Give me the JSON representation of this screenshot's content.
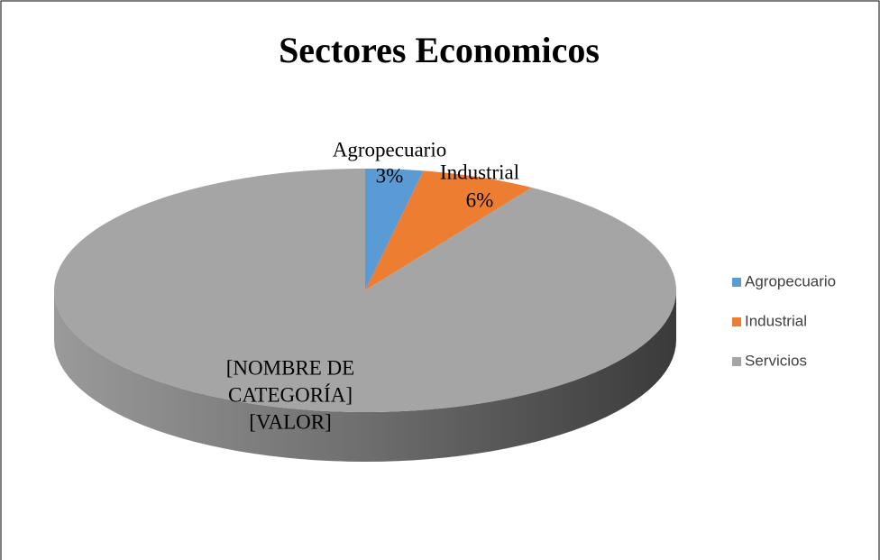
{
  "chart_data": {
    "type": "pie",
    "title": "Sectores Economicos",
    "categories": [
      "Agropecuario",
      "Industrial",
      "Servicios"
    ],
    "values": [
      3,
      6,
      91
    ],
    "value_labels": [
      "3%",
      "6%",
      null
    ],
    "colors": [
      "#5b9bd5",
      "#ed7d31",
      "#a5a5a5"
    ],
    "placeholder_label": [
      "[NOMBRE DE",
      "CATEGORÍA]",
      "[VALOR]"
    ],
    "legend": "right"
  }
}
